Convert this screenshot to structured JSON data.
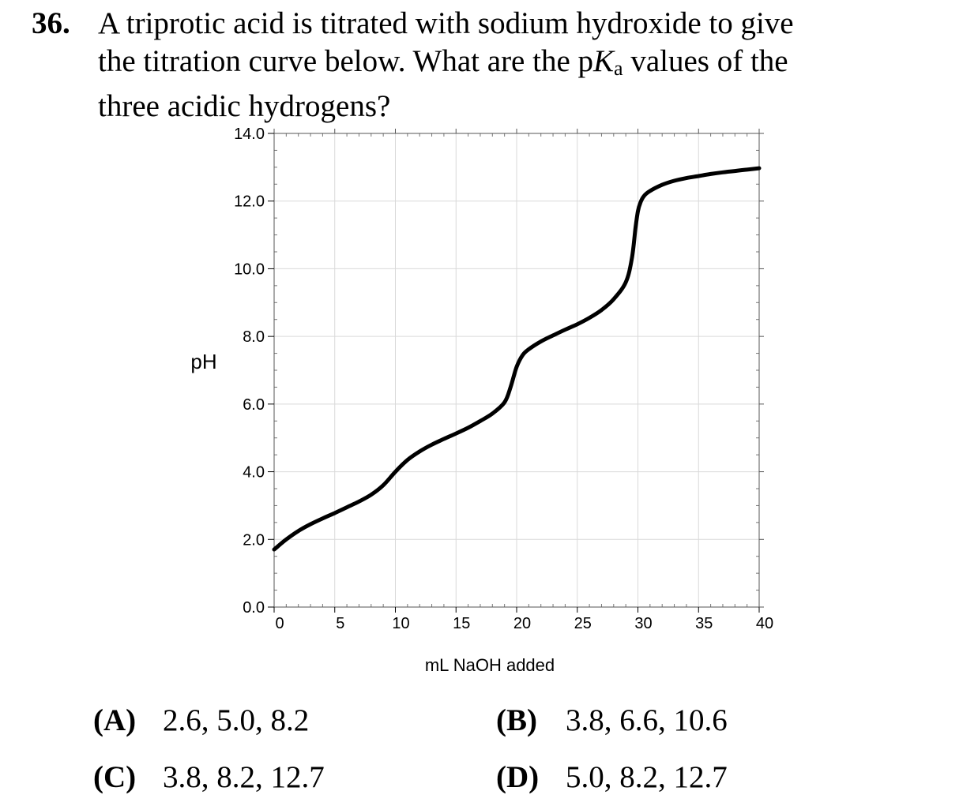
{
  "question": {
    "number": "36.",
    "line1": "A triprotic acid is titrated with sodium hydroxide to give",
    "line2_a": "the titration curve below.  What are the p",
    "line2_k": "K",
    "line2_sub": "a",
    "line2_b": " values of the",
    "line3": "three acidic hydrogens?"
  },
  "chart_data": {
    "type": "line",
    "title": "",
    "xlabel": "mL NaOH added",
    "ylabel": "pH",
    "xlim": [
      0,
      40
    ],
    "ylim": [
      0,
      14
    ],
    "x_ticks": [
      0,
      5,
      10,
      15,
      20,
      25,
      30,
      35,
      40
    ],
    "x_tick_labels": [
      "0",
      "5",
      "10",
      "15",
      "20",
      "25",
      "30",
      "35",
      "40"
    ],
    "y_ticks": [
      0,
      2,
      4,
      6,
      8,
      10,
      12,
      14
    ],
    "y_tick_labels": [
      "0.0",
      "2.0",
      "4.0",
      "6.0",
      "8.0",
      "10.0",
      "12.0",
      "14.0"
    ],
    "grid": true,
    "line_color": "#000000",
    "grid_color": "#d9d9d9",
    "series": [
      {
        "x": [
          0,
          1,
          2,
          3,
          4,
          5,
          6,
          7,
          8,
          9,
          10,
          11,
          12,
          13,
          14,
          15,
          16,
          17,
          18,
          19,
          19.5,
          20,
          20.5,
          21,
          22,
          23,
          24,
          25,
          26,
          27,
          28,
          29,
          29.5,
          29.8,
          30,
          30.2,
          30.5,
          31,
          32,
          33,
          34,
          35,
          36,
          37,
          38,
          39,
          40
        ],
        "y": [
          1.7,
          2.0,
          2.25,
          2.45,
          2.62,
          2.78,
          2.95,
          3.12,
          3.32,
          3.6,
          4.0,
          4.35,
          4.6,
          4.8,
          4.97,
          5.13,
          5.3,
          5.5,
          5.72,
          6.05,
          6.5,
          7.1,
          7.45,
          7.62,
          7.85,
          8.03,
          8.2,
          8.36,
          8.55,
          8.78,
          9.1,
          9.6,
          10.3,
          11.2,
          11.7,
          11.95,
          12.15,
          12.3,
          12.48,
          12.6,
          12.68,
          12.74,
          12.8,
          12.85,
          12.89,
          12.93,
          12.97
        ]
      }
    ]
  },
  "choices": [
    {
      "letter": "(A)",
      "value": "2.6, 5.0, 8.2"
    },
    {
      "letter": "(B)",
      "value": "3.8, 6.6, 10.6"
    },
    {
      "letter": "(C)",
      "value": "3.8, 8.2, 12.7"
    },
    {
      "letter": "(D)",
      "value": "5.0, 8.2, 12.7"
    }
  ]
}
